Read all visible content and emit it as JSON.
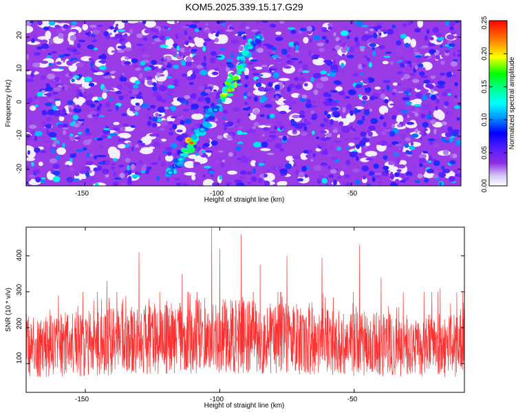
{
  "title": "KOM5.2025.339.15.17.G29",
  "chart_data": [
    {
      "type": "heatmap",
      "xlabel": "Height of straight line (km)",
      "ylabel": "Frequency (Hz)",
      "xlim": [
        -172,
        -9
      ],
      "ylim": [
        -25,
        25
      ],
      "xticks": [
        "-150",
        "-100",
        "-50"
      ],
      "yticks": [
        "-20",
        "-10",
        "0",
        "10",
        "20"
      ],
      "colorbar": {
        "label": "Normalized spectral amplitude",
        "range": [
          0,
          0.25
        ],
        "ticks": [
          "0.00",
          "0.05",
          "0.10",
          "0.15",
          "0.20",
          "0.25"
        ]
      },
      "background_amplitude": 0.05,
      "ridge": {
        "points": [
          {
            "x": -118,
            "y": -21,
            "amplitude": 0.12
          },
          {
            "x": -114,
            "y": -17,
            "amplitude": 0.13
          },
          {
            "x": -110,
            "y": -12,
            "amplitude": 0.23
          },
          {
            "x": -106,
            "y": -8,
            "amplitude": 0.12
          },
          {
            "x": -101,
            "y": -2,
            "amplitude": 0.11
          },
          {
            "x": -96,
            "y": 4,
            "amplitude": 0.21
          },
          {
            "x": -92,
            "y": 11,
            "amplitude": 0.16
          },
          {
            "x": -88,
            "y": 17,
            "amplitude": 0.14
          },
          {
            "x": -85,
            "y": 20,
            "amplitude": 0.12
          }
        ]
      }
    },
    {
      "type": "line",
      "xlabel": "Height of straight line (km)",
      "ylabel": "SNR (10 * v/v)",
      "xlim": [
        -172,
        -9
      ],
      "ylim": [
        20,
        480
      ],
      "xticks": [
        "-150",
        "-100",
        "-50"
      ],
      "yticks": [
        "100",
        "200",
        "300",
        "400"
      ],
      "series": [
        {
          "color": "#ff3030",
          "mean": 150,
          "spread": 55,
          "peaks": [
            {
              "x": -160,
              "y": 290
            },
            {
              "x": -142,
              "y": 330
            },
            {
              "x": -130,
              "y": 410
            },
            {
              "x": -114,
              "y": 350
            },
            {
              "x": -103,
              "y": 480
            },
            {
              "x": -100,
              "y": 420
            },
            {
              "x": -92,
              "y": 460
            },
            {
              "x": -85,
              "y": 375
            },
            {
              "x": -75,
              "y": 400
            },
            {
              "x": -62,
              "y": 395
            },
            {
              "x": -48,
              "y": 430
            },
            {
              "x": -40,
              "y": 340
            },
            {
              "x": -24,
              "y": 300
            },
            {
              "x": -18,
              "y": 310
            }
          ]
        }
      ]
    }
  ]
}
